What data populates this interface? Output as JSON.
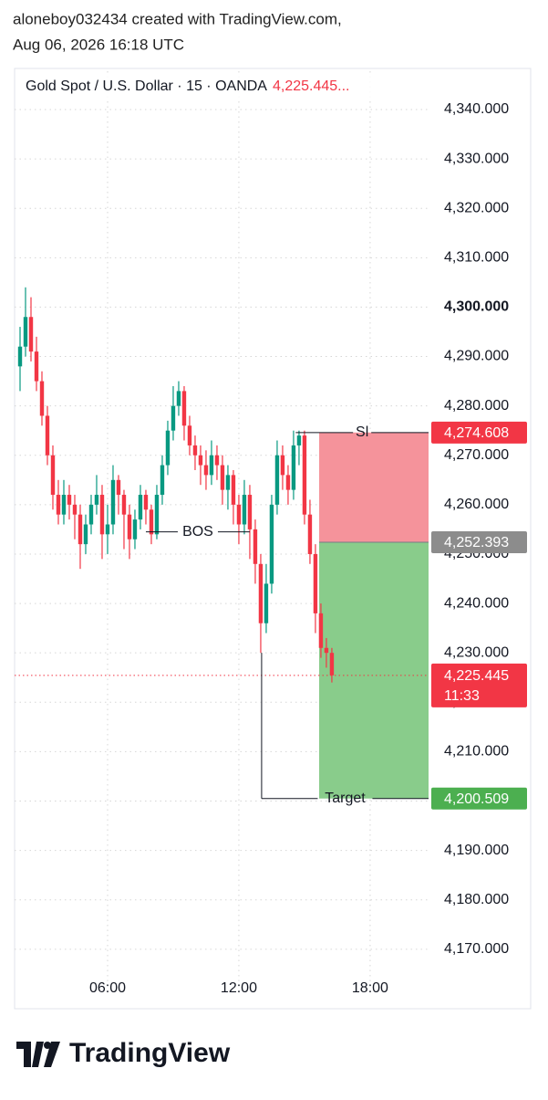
{
  "header": {
    "line1": "aloneboy032434 created with TradingView.com,",
    "line2": "Aug 06, 2026 16:18 UTC"
  },
  "logo": "TradingView",
  "chart_data": {
    "type": "candlestick",
    "title": "Gold Spot / U.S. Dollar · 15 · OANDA",
    "legend_price": "4,225.445...",
    "up_color": "#089981",
    "down_color": "#f23645",
    "x": [
      2,
      2.25,
      2.5,
      2.75,
      3,
      3.25,
      3.5,
      3.75,
      4,
      4.25,
      4.5,
      4.75,
      5,
      5.25,
      5.5,
      5.75,
      6,
      6.25,
      6.5,
      6.75,
      7,
      7.25,
      7.5,
      7.75,
      8,
      8.25,
      8.5,
      8.75,
      9,
      9.25,
      9.5,
      9.75,
      10,
      10.25,
      10.5,
      10.75,
      11,
      11.25,
      11.5,
      11.75,
      12,
      12.25,
      12.5,
      12.75,
      13,
      13.25,
      13.5,
      13.75,
      14,
      14.25,
      14.5,
      14.75,
      15,
      15.25,
      15.5,
      15.75,
      16,
      16.25
    ],
    "open": [
      4288,
      4292,
      4298,
      4291,
      4285,
      4278,
      4270,
      4262,
      4258,
      4262,
      4260,
      4258,
      4252,
      4256,
      4260,
      4262,
      4254,
      4256,
      4265,
      4262,
      4258,
      4253,
      4257,
      4262,
      4259,
      4254,
      4262,
      4268,
      4275,
      4280,
      4283,
      4276,
      4272,
      4270,
      4268,
      4266,
      4270,
      4268,
      4263,
      4266,
      4260,
      4256,
      4262,
      4255,
      4248,
      4236,
      4244,
      4260,
      4270,
      4266,
      4263,
      4272,
      4274,
      4258,
      4250,
      4238,
      4231,
      4230
    ],
    "high": [
      4296,
      4304,
      4302,
      4294,
      4287,
      4280,
      4272,
      4265,
      4265,
      4264,
      4262,
      4260,
      4258,
      4262,
      4266,
      4264,
      4260,
      4268,
      4266,
      4263,
      4260,
      4259,
      4264,
      4263,
      4260,
      4264,
      4270,
      4277,
      4284,
      4285,
      4284,
      4278,
      4274,
      4272,
      4271,
      4273,
      4272,
      4270,
      4268,
      4267,
      4262,
      4265,
      4264,
      4257,
      4250,
      4248,
      4262,
      4273,
      4272,
      4268,
      4275,
      4275,
      4275,
      4261,
      4252,
      4240,
      4233,
      4231
    ],
    "low": [
      4283,
      4290,
      4289,
      4283,
      4276,
      4268,
      4259,
      4256,
      4256,
      4257,
      4253,
      4247,
      4250,
      4254,
      4258,
      4249,
      4250,
      4254,
      4258,
      4251,
      4249,
      4251,
      4255,
      4256,
      4252,
      4253,
      4260,
      4266,
      4273,
      4278,
      4273,
      4270,
      4267,
      4264,
      4263,
      4264,
      4265,
      4260,
      4259,
      4256,
      4252,
      4254,
      4249,
      4244,
      4230,
      4234,
      4242,
      4258,
      4263,
      4260,
      4261,
      4268,
      4256,
      4248,
      4234,
      4229,
      4227,
      4224
    ],
    "close": [
      4292,
      4298,
      4291,
      4285,
      4278,
      4270,
      4262,
      4258,
      4262,
      4260,
      4258,
      4252,
      4256,
      4260,
      4262,
      4254,
      4256,
      4265,
      4262,
      4258,
      4253,
      4257,
      4262,
      4259,
      4254,
      4262,
      4268,
      4275,
      4280,
      4283,
      4276,
      4272,
      4270,
      4268,
      4266,
      4270,
      4268,
      4263,
      4266,
      4260,
      4256,
      4262,
      4255,
      4248,
      4236,
      4244,
      4260,
      4270,
      4266,
      4263,
      4272,
      4274,
      4258,
      4250,
      4238,
      4231,
      4230,
      4225.445
    ],
    "xlim": [
      1.75,
      20.67
    ],
    "ylim": [
      4163.5,
      4347.76
    ],
    "xticks": [
      {
        "value": 6,
        "label": "06:00"
      },
      {
        "value": 12,
        "label": "12:00"
      },
      {
        "value": 18,
        "label": "18:00"
      }
    ],
    "yticks": [
      {
        "value": 4340,
        "label": "4,340.000"
      },
      {
        "value": 4330,
        "label": "4,330.000"
      },
      {
        "value": 4320,
        "label": "4,320.000"
      },
      {
        "value": 4310,
        "label": "4,310.000"
      },
      {
        "value": 4300,
        "label": "4,300.000"
      },
      {
        "value": 4290,
        "label": "4,290.000"
      },
      {
        "value": 4280,
        "label": "4,280.000"
      },
      {
        "value": 4270,
        "label": "4,270.000"
      },
      {
        "value": 4260,
        "label": "4,260.000"
      },
      {
        "value": 4250,
        "label": "4,250.000"
      },
      {
        "value": 4240,
        "label": "4,240.000"
      },
      {
        "value": 4230,
        "label": "4,230.000"
      },
      {
        "value": 4220,
        "label": "4,220.000"
      },
      {
        "value": 4210,
        "label": "4,210.000"
      },
      {
        "value": 4200,
        "label": "4,200.000"
      },
      {
        "value": 4190,
        "label": "4,190.000"
      },
      {
        "value": 4180,
        "label": "4,180.000"
      },
      {
        "value": 4170,
        "label": "4,170.000"
      }
    ],
    "grid": true,
    "position": {
      "x_start": 15.67,
      "stop": {
        "value": 4274.608,
        "label": "4,274.608"
      },
      "entry": {
        "value": 4252.393,
        "label": "4,252.393"
      },
      "target": {
        "value": 4200.509,
        "label": "4,200.509"
      }
    },
    "last_price": {
      "value": 4225.445,
      "label": "4,225.445",
      "countdown": "11:33"
    },
    "annotations": {
      "bos": {
        "text": "BOS",
        "y": 4254.5,
        "x_start": 7.75,
        "x_end": 12.5
      },
      "stop": {
        "text": "Sl",
        "x_start": 14.6
      },
      "target": {
        "text": "Target",
        "x_start": 13.04,
        "y_from": 4230
      }
    }
  }
}
